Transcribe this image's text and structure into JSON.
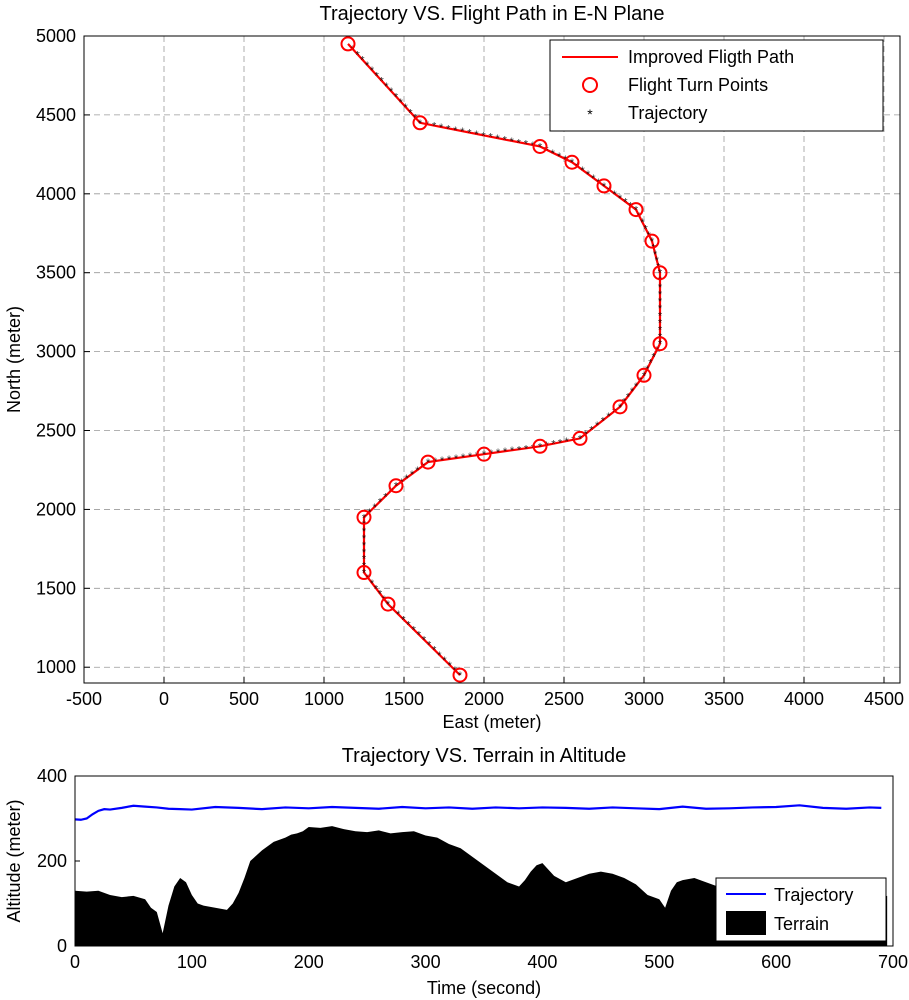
{
  "chart_data": [
    {
      "type": "line",
      "title": "Trajectory VS. Flight Path in E-N Plane",
      "xlabel": "East (meter)",
      "ylabel": "North (meter)",
      "xlim": [
        -500,
        4600
      ],
      "ylim": [
        900,
        5000
      ],
      "xticks": [
        -500,
        0,
        500,
        1000,
        1500,
        2000,
        2500,
        3000,
        3500,
        4000,
        4500
      ],
      "yticks": [
        1000,
        1500,
        2000,
        2500,
        3000,
        3500,
        4000,
        4500,
        5000
      ],
      "grid": true,
      "legend_position": "top-right",
      "series": [
        {
          "name": "Improved Fligth Path",
          "style": "line",
          "color": "#ff0000"
        },
        {
          "name": "Flight Turn Points",
          "style": "marker-circle",
          "color": "#ff0000"
        },
        {
          "name": "Trajectory",
          "style": "marker-asterisk",
          "color": "#4444ff"
        }
      ],
      "points": [
        [
          1850,
          950
        ],
        [
          1400,
          1400
        ],
        [
          1250,
          1600
        ],
        [
          1250,
          1950
        ],
        [
          1450,
          2150
        ],
        [
          1650,
          2300
        ],
        [
          2000,
          2350
        ],
        [
          2350,
          2400
        ],
        [
          2600,
          2450
        ],
        [
          2850,
          2650
        ],
        [
          3000,
          2850
        ],
        [
          3100,
          3050
        ],
        [
          3100,
          3500
        ],
        [
          3050,
          3700
        ],
        [
          2950,
          3900
        ],
        [
          2750,
          4050
        ],
        [
          2550,
          4200
        ],
        [
          2350,
          4300
        ],
        [
          1600,
          4450
        ],
        [
          1150,
          4950
        ]
      ]
    },
    {
      "type": "area",
      "title": "Trajectory VS. Terrain in Altitude",
      "xlabel": "Time (second)",
      "ylabel": "Altitude (meter)",
      "xlim": [
        0,
        700
      ],
      "ylim": [
        0,
        400
      ],
      "xticks": [
        0,
        100,
        200,
        300,
        400,
        500,
        600,
        700
      ],
      "yticks": [
        0,
        200,
        400
      ],
      "legend_position": "bottom-right",
      "series": [
        {
          "name": "Trajectory",
          "style": "line",
          "color": "#0000ff",
          "x": [
            0,
            5,
            10,
            15,
            20,
            25,
            30,
            40,
            50,
            60,
            70,
            80,
            90,
            100,
            120,
            140,
            160,
            180,
            200,
            220,
            240,
            260,
            280,
            300,
            320,
            340,
            360,
            380,
            400,
            420,
            440,
            460,
            480,
            500,
            520,
            540,
            560,
            580,
            600,
            620,
            640,
            660,
            680,
            690
          ],
          "y": [
            298,
            297,
            300,
            310,
            318,
            322,
            321,
            325,
            330,
            328,
            326,
            323,
            322,
            321,
            327,
            325,
            322,
            326,
            324,
            327,
            325,
            323,
            327,
            324,
            326,
            323,
            326,
            324,
            326,
            325,
            323,
            326,
            324,
            322,
            328,
            323,
            324,
            326,
            327,
            331,
            325,
            323,
            326,
            325
          ]
        },
        {
          "name": "Terrain",
          "style": "filled-area",
          "color": "#000000",
          "x": [
            0,
            10,
            20,
            25,
            30,
            40,
            50,
            60,
            65,
            70,
            75,
            80,
            85,
            90,
            95,
            100,
            105,
            110,
            120,
            130,
            135,
            140,
            145,
            150,
            160,
            170,
            180,
            185,
            190,
            195,
            200,
            210,
            220,
            230,
            240,
            250,
            260,
            270,
            280,
            290,
            300,
            310,
            320,
            330,
            340,
            345,
            350,
            355,
            360,
            370,
            380,
            385,
            390,
            395,
            400,
            405,
            410,
            420,
            430,
            440,
            450,
            460,
            470,
            480,
            490,
            500,
            505,
            510,
            515,
            520,
            530,
            540,
            550,
            560,
            570,
            580,
            590,
            600,
            610,
            620,
            630,
            640,
            650,
            660,
            670,
            680,
            690,
            695
          ],
          "y": [
            130,
            128,
            130,
            125,
            120,
            115,
            118,
            110,
            90,
            80,
            30,
            95,
            140,
            160,
            150,
            120,
            100,
            95,
            90,
            85,
            100,
            125,
            160,
            200,
            225,
            245,
            255,
            262,
            265,
            270,
            280,
            278,
            282,
            275,
            270,
            268,
            272,
            265,
            268,
            270,
            260,
            255,
            240,
            230,
            210,
            200,
            190,
            180,
            170,
            150,
            140,
            155,
            175,
            190,
            195,
            180,
            165,
            150,
            160,
            170,
            175,
            170,
            160,
            145,
            120,
            110,
            90,
            130,
            150,
            155,
            160,
            150,
            140,
            130,
            120,
            115,
            110,
            105,
            108,
            112,
            118,
            120,
            118,
            115,
            112,
            110,
            115,
            118
          ]
        }
      ]
    }
  ]
}
